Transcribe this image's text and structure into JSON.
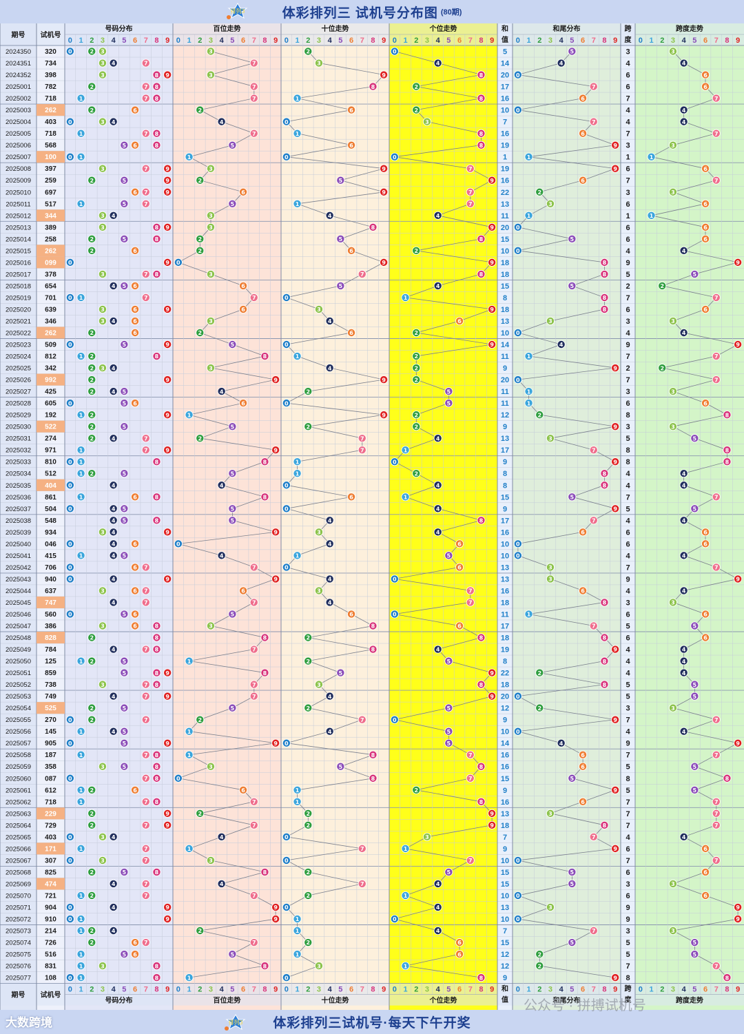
{
  "title": "体彩排列三 试机号分布图",
  "title_suffix": "(80期)",
  "footer": "体彩排列三试机号·每天下午开奖",
  "logo_badge": "排列3",
  "brand_left": "大数跨境",
  "watermark": "公众号 · 拼搏试机号",
  "headers": {
    "issue": "期号",
    "trial": "试机号",
    "dist": "号码分布",
    "hundreds": "百位走势",
    "tens": "十位走势",
    "units": "个位走势",
    "sum_top": "和",
    "sum_bottom": "值",
    "sumtail": "和尾分布",
    "span_top": "跨",
    "span_bottom": "度",
    "spantrend": "跨度走势"
  },
  "digits": [
    "0",
    "1",
    "2",
    "3",
    "4",
    "5",
    "6",
    "7",
    "8",
    "9"
  ],
  "colors": {
    "title_bg": "#c9d6f2",
    "title_text": "#1d3f8f",
    "dist_bg": "#e3e6f7",
    "hundreds_bg": "#fde3d8",
    "tens_bg": "#fdf0dc",
    "units_bg": "#ffff1a",
    "sumtail_bg": "#dfeedb",
    "spantrend_bg": "#d4f5c8",
    "highlight": "#f5b183",
    "digit_colors": [
      "#1f7fc8",
      "#3aa5dc",
      "#2e9e3e",
      "#8cc34b",
      "#1f2d5c",
      "#8a4bb8",
      "#ef7d31",
      "#ef6d8c",
      "#d8327a",
      "#e02020"
    ]
  },
  "chart_data": {
    "type": "table",
    "period_count": 80,
    "rows": [
      {
        "issue": "2024350",
        "trial": "320",
        "sum": "5",
        "span": "3"
      },
      {
        "issue": "2024351",
        "trial": "734",
        "sum": "14",
        "span": "4"
      },
      {
        "issue": "2024352",
        "trial": "398",
        "sum": "20",
        "span": "6"
      },
      {
        "issue": "2025001",
        "trial": "782",
        "sum": "17",
        "span": "6"
      },
      {
        "issue": "2025002",
        "trial": "718",
        "sum": "16",
        "span": "7"
      },
      {
        "issue": "2025003",
        "trial": "262",
        "sum": "10",
        "span": "4",
        "hl": true
      },
      {
        "issue": "2025004",
        "trial": "403",
        "sum": "7",
        "span": "4"
      },
      {
        "issue": "2025005",
        "trial": "718",
        "sum": "16",
        "span": "7"
      },
      {
        "issue": "2025006",
        "trial": "568",
        "sum": "19",
        "span": "3"
      },
      {
        "issue": "2025007",
        "trial": "100",
        "sum": "1",
        "span": "1",
        "hl": true
      },
      {
        "issue": "2025008",
        "trial": "397",
        "sum": "19",
        "span": "6"
      },
      {
        "issue": "2025009",
        "trial": "259",
        "sum": "16",
        "span": "7"
      },
      {
        "issue": "2025010",
        "trial": "697",
        "sum": "22",
        "span": "3"
      },
      {
        "issue": "2025011",
        "trial": "517",
        "sum": "13",
        "span": "6"
      },
      {
        "issue": "2025012",
        "trial": "344",
        "sum": "11",
        "span": "1",
        "hl": true
      },
      {
        "issue": "2025013",
        "trial": "389",
        "sum": "20",
        "span": "6"
      },
      {
        "issue": "2025014",
        "trial": "258",
        "sum": "15",
        "span": "6"
      },
      {
        "issue": "2025015",
        "trial": "262",
        "sum": "10",
        "span": "4",
        "hl": true
      },
      {
        "issue": "2025016",
        "trial": "099",
        "sum": "18",
        "span": "9",
        "hl": true
      },
      {
        "issue": "2025017",
        "trial": "378",
        "sum": "18",
        "span": "5"
      },
      {
        "issue": "2025018",
        "trial": "654",
        "sum": "15",
        "span": "2"
      },
      {
        "issue": "2025019",
        "trial": "701",
        "sum": "8",
        "span": "7"
      },
      {
        "issue": "2025020",
        "trial": "639",
        "sum": "18",
        "span": "6"
      },
      {
        "issue": "2025021",
        "trial": "346",
        "sum": "13",
        "span": "3"
      },
      {
        "issue": "2025022",
        "trial": "262",
        "sum": "10",
        "span": "4",
        "hl": true
      },
      {
        "issue": "2025023",
        "trial": "509",
        "sum": "14",
        "span": "9"
      },
      {
        "issue": "2025024",
        "trial": "812",
        "sum": "11",
        "span": "7"
      },
      {
        "issue": "2025025",
        "trial": "342",
        "sum": "9",
        "span": "2"
      },
      {
        "issue": "2025026",
        "trial": "992",
        "sum": "20",
        "span": "7",
        "hl": true
      },
      {
        "issue": "2025027",
        "trial": "425",
        "sum": "11",
        "span": "3"
      },
      {
        "issue": "2025028",
        "trial": "605",
        "sum": "11",
        "span": "6"
      },
      {
        "issue": "2025029",
        "trial": "192",
        "sum": "12",
        "span": "8"
      },
      {
        "issue": "2025030",
        "trial": "522",
        "sum": "9",
        "span": "3",
        "hl": true
      },
      {
        "issue": "2025031",
        "trial": "274",
        "sum": "13",
        "span": "5"
      },
      {
        "issue": "2025032",
        "trial": "971",
        "sum": "17",
        "span": "8"
      },
      {
        "issue": "2025033",
        "trial": "810",
        "sum": "9",
        "span": "8"
      },
      {
        "issue": "2025034",
        "trial": "512",
        "sum": "8",
        "span": "4"
      },
      {
        "issue": "2025035",
        "trial": "404",
        "sum": "8",
        "span": "4",
        "hl": true
      },
      {
        "issue": "2025036",
        "trial": "861",
        "sum": "15",
        "span": "7"
      },
      {
        "issue": "2025037",
        "trial": "504",
        "sum": "9",
        "span": "5"
      },
      {
        "issue": "2025038",
        "trial": "548",
        "sum": "17",
        "span": "4"
      },
      {
        "issue": "2025039",
        "trial": "934",
        "sum": "16",
        "span": "6"
      },
      {
        "issue": "2025040",
        "trial": "046",
        "sum": "10",
        "span": "6"
      },
      {
        "issue": "2025041",
        "trial": "415",
        "sum": "10",
        "span": "4"
      },
      {
        "issue": "2025042",
        "trial": "706",
        "sum": "13",
        "span": "7"
      },
      {
        "issue": "2025043",
        "trial": "940",
        "sum": "13",
        "span": "9"
      },
      {
        "issue": "2025044",
        "trial": "637",
        "sum": "16",
        "span": "4"
      },
      {
        "issue": "2025045",
        "trial": "747",
        "sum": "18",
        "span": "3",
        "hl": true
      },
      {
        "issue": "2025046",
        "trial": "560",
        "sum": "11",
        "span": "6"
      },
      {
        "issue": "2025047",
        "trial": "386",
        "sum": "17",
        "span": "5"
      },
      {
        "issue": "2025048",
        "trial": "828",
        "sum": "18",
        "span": "6",
        "hl": true
      },
      {
        "issue": "2025049",
        "trial": "784",
        "sum": "19",
        "span": "4"
      },
      {
        "issue": "2025050",
        "trial": "125",
        "sum": "8",
        "span": "4"
      },
      {
        "issue": "2025051",
        "trial": "859",
        "sum": "22",
        "span": "4"
      },
      {
        "issue": "2025052",
        "trial": "738",
        "sum": "18",
        "span": "5"
      },
      {
        "issue": "2025053",
        "trial": "749",
        "sum": "20",
        "span": "5"
      },
      {
        "issue": "2025054",
        "trial": "525",
        "sum": "12",
        "span": "3",
        "hl": true
      },
      {
        "issue": "2025055",
        "trial": "270",
        "sum": "9",
        "span": "7"
      },
      {
        "issue": "2025056",
        "trial": "145",
        "sum": "10",
        "span": "4"
      },
      {
        "issue": "2025057",
        "trial": "905",
        "sum": "14",
        "span": "9"
      },
      {
        "issue": "2025058",
        "trial": "187",
        "sum": "16",
        "span": "7"
      },
      {
        "issue": "2025059",
        "trial": "358",
        "sum": "16",
        "span": "5"
      },
      {
        "issue": "2025060",
        "trial": "087",
        "sum": "15",
        "span": "8"
      },
      {
        "issue": "2025061",
        "trial": "612",
        "sum": "9",
        "span": "5"
      },
      {
        "issue": "2025062",
        "trial": "718",
        "sum": "16",
        "span": "7"
      },
      {
        "issue": "2025063",
        "trial": "229",
        "sum": "13",
        "span": "7",
        "hl": true
      },
      {
        "issue": "2025064",
        "trial": "729",
        "sum": "18",
        "span": "7"
      },
      {
        "issue": "2025065",
        "trial": "403",
        "sum": "7",
        "span": "4"
      },
      {
        "issue": "2025066",
        "trial": "171",
        "sum": "9",
        "span": "6",
        "hl": true
      },
      {
        "issue": "2025067",
        "trial": "307",
        "sum": "10",
        "span": "7"
      },
      {
        "issue": "2025068",
        "trial": "825",
        "sum": "15",
        "span": "6"
      },
      {
        "issue": "2025069",
        "trial": "474",
        "sum": "15",
        "span": "3",
        "hl": true
      },
      {
        "issue": "2025070",
        "trial": "721",
        "sum": "10",
        "span": "6"
      },
      {
        "issue": "2025071",
        "trial": "904",
        "sum": "13",
        "span": "9"
      },
      {
        "issue": "2025072",
        "trial": "910",
        "sum": "10",
        "span": "9"
      },
      {
        "issue": "2025073",
        "trial": "214",
        "sum": "7",
        "span": "3"
      },
      {
        "issue": "2025074",
        "trial": "726",
        "sum": "15",
        "span": "5"
      },
      {
        "issue": "2025075",
        "trial": "516",
        "sum": "12",
        "span": "5"
      },
      {
        "issue": "2025076",
        "trial": "831",
        "sum": "12",
        "span": "7"
      },
      {
        "issue": "2025077",
        "trial": "108",
        "sum": "9",
        "span": "8"
      }
    ]
  }
}
